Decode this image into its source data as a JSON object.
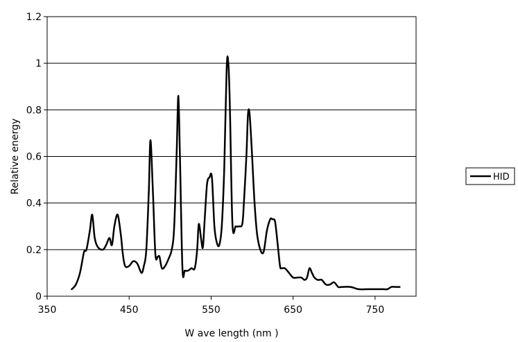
{
  "chart_data": {
    "type": "line",
    "title": "",
    "xlabel": "W ave length (nm )",
    "ylabel": "Relative energy",
    "xlim": [
      350,
      800
    ],
    "ylim": [
      0,
      1.2
    ],
    "x_ticks": [
      350,
      450,
      550,
      650,
      750
    ],
    "x_tick_labels": [
      "350",
      "450",
      "550",
      "650",
      "750"
    ],
    "y_ticks": [
      0,
      0.2,
      0.4,
      0.6,
      0.8,
      1.0,
      1.2
    ],
    "y_tick_labels": [
      "0",
      "0.2",
      "0.4",
      "0.6",
      "0.8",
      "1",
      "1.2"
    ],
    "grid": "horizontal",
    "legend_position": "right",
    "series": [
      {
        "name": "HID",
        "color": "#000000",
        "x": [
          380,
          385,
          390,
          395,
          398,
          402,
          405,
          408,
          412,
          418,
          422,
          426,
          429,
          432,
          436,
          440,
          442,
          445,
          450,
          455,
          460,
          465,
          468,
          471,
          474,
          476,
          479,
          482,
          485,
          487,
          490,
          494,
          498,
          502,
          505,
          508,
          510,
          512,
          515,
          518,
          522,
          526,
          530,
          533,
          535,
          538,
          540,
          542,
          545,
          548,
          551,
          554,
          557,
          560,
          563,
          566,
          569,
          571,
          573,
          576,
          580,
          584,
          588,
          590,
          593,
          595,
          597,
          600,
          603,
          606,
          610,
          614,
          618,
          622,
          625,
          628,
          631,
          634,
          636,
          640,
          645,
          650,
          655,
          660,
          664,
          667,
          670,
          673,
          676,
          680,
          685,
          690,
          695,
          700,
          705,
          710,
          720,
          730,
          740,
          750,
          755,
          760,
          765,
          770,
          775,
          780
        ],
        "y": [
          0.03,
          0.05,
          0.1,
          0.19,
          0.2,
          0.28,
          0.35,
          0.25,
          0.21,
          0.2,
          0.22,
          0.25,
          0.22,
          0.3,
          0.35,
          0.26,
          0.19,
          0.13,
          0.13,
          0.15,
          0.14,
          0.1,
          0.13,
          0.2,
          0.45,
          0.67,
          0.45,
          0.18,
          0.17,
          0.17,
          0.12,
          0.13,
          0.16,
          0.2,
          0.3,
          0.62,
          0.86,
          0.6,
          0.12,
          0.11,
          0.11,
          0.12,
          0.12,
          0.2,
          0.31,
          0.24,
          0.21,
          0.32,
          0.48,
          0.51,
          0.51,
          0.3,
          0.23,
          0.22,
          0.3,
          0.55,
          0.98,
          1.0,
          0.8,
          0.31,
          0.3,
          0.3,
          0.31,
          0.4,
          0.6,
          0.78,
          0.78,
          0.6,
          0.4,
          0.27,
          0.2,
          0.19,
          0.28,
          0.33,
          0.33,
          0.32,
          0.23,
          0.13,
          0.12,
          0.12,
          0.1,
          0.08,
          0.08,
          0.08,
          0.07,
          0.08,
          0.12,
          0.1,
          0.08,
          0.07,
          0.07,
          0.05,
          0.05,
          0.06,
          0.04,
          0.04,
          0.04,
          0.03,
          0.03,
          0.03,
          0.03,
          0.03,
          0.03,
          0.04,
          0.04,
          0.04
        ]
      }
    ]
  }
}
